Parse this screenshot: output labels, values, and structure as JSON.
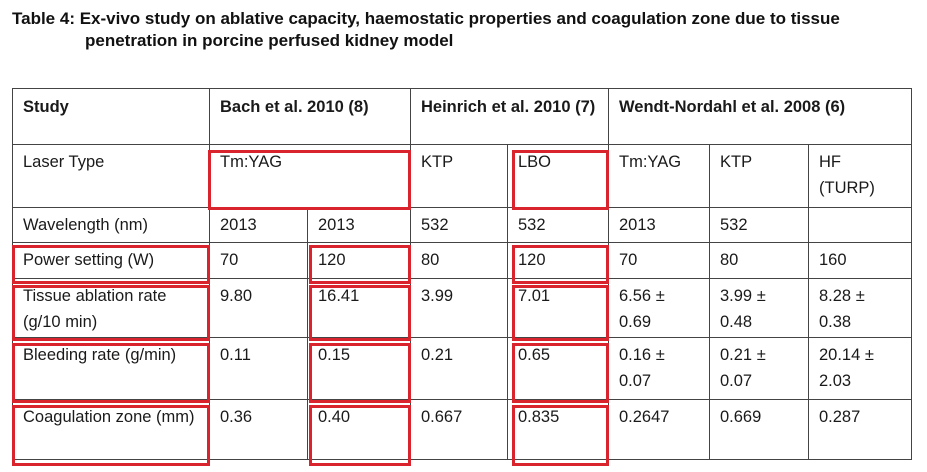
{
  "caption": {
    "line1": "Table 4: Ex-vivo study on ablative capacity, haemostatic properties and coagulation zone due to tissue",
    "line2": "penetration in porcine perfused kidney model"
  },
  "table": {
    "study_label": "Study",
    "studies": [
      "Bach et al. 2010 (8)",
      "Heinrich et al. 2010 (7)",
      "Wendt-Nordahl et al. 2008 (6)"
    ],
    "laser_type_label": "Laser Type",
    "laser_types": [
      "Tm:YAG",
      "KTP",
      "LBO",
      "Tm:YAG",
      "KTP",
      "HF (TURP)"
    ],
    "rows": [
      {
        "label": "Wavelength (nm)",
        "values": [
          "2013",
          "2013",
          "532",
          "532",
          "2013",
          "532",
          ""
        ]
      },
      {
        "label": "Power setting (W)",
        "values": [
          "70",
          "120",
          "80",
          "120",
          "70",
          "80",
          "160"
        ]
      },
      {
        "label": "Tissue ablation rate (g/10 min)",
        "values": [
          "9.80",
          "16.41",
          "3.99",
          "7.01",
          "6.56 ± 0.69",
          "3.99 ± 0.48",
          "8.28 ± 0.38"
        ]
      },
      {
        "label": "Bleeding rate (g/min)",
        "values": [
          "0.11",
          "0.15",
          "0.21",
          "0.65",
          "0.16 ± 0.07",
          "0.21 ± 0.07",
          "20.14 ± 2.03"
        ]
      },
      {
        "label": "Coagulation zone (mm)",
        "values": [
          "0.36",
          "0.40",
          "0.667",
          "0.835",
          "0.2647",
          "0.669",
          "0.287"
        ]
      }
    ]
  },
  "highlight_color": "#d9232d"
}
